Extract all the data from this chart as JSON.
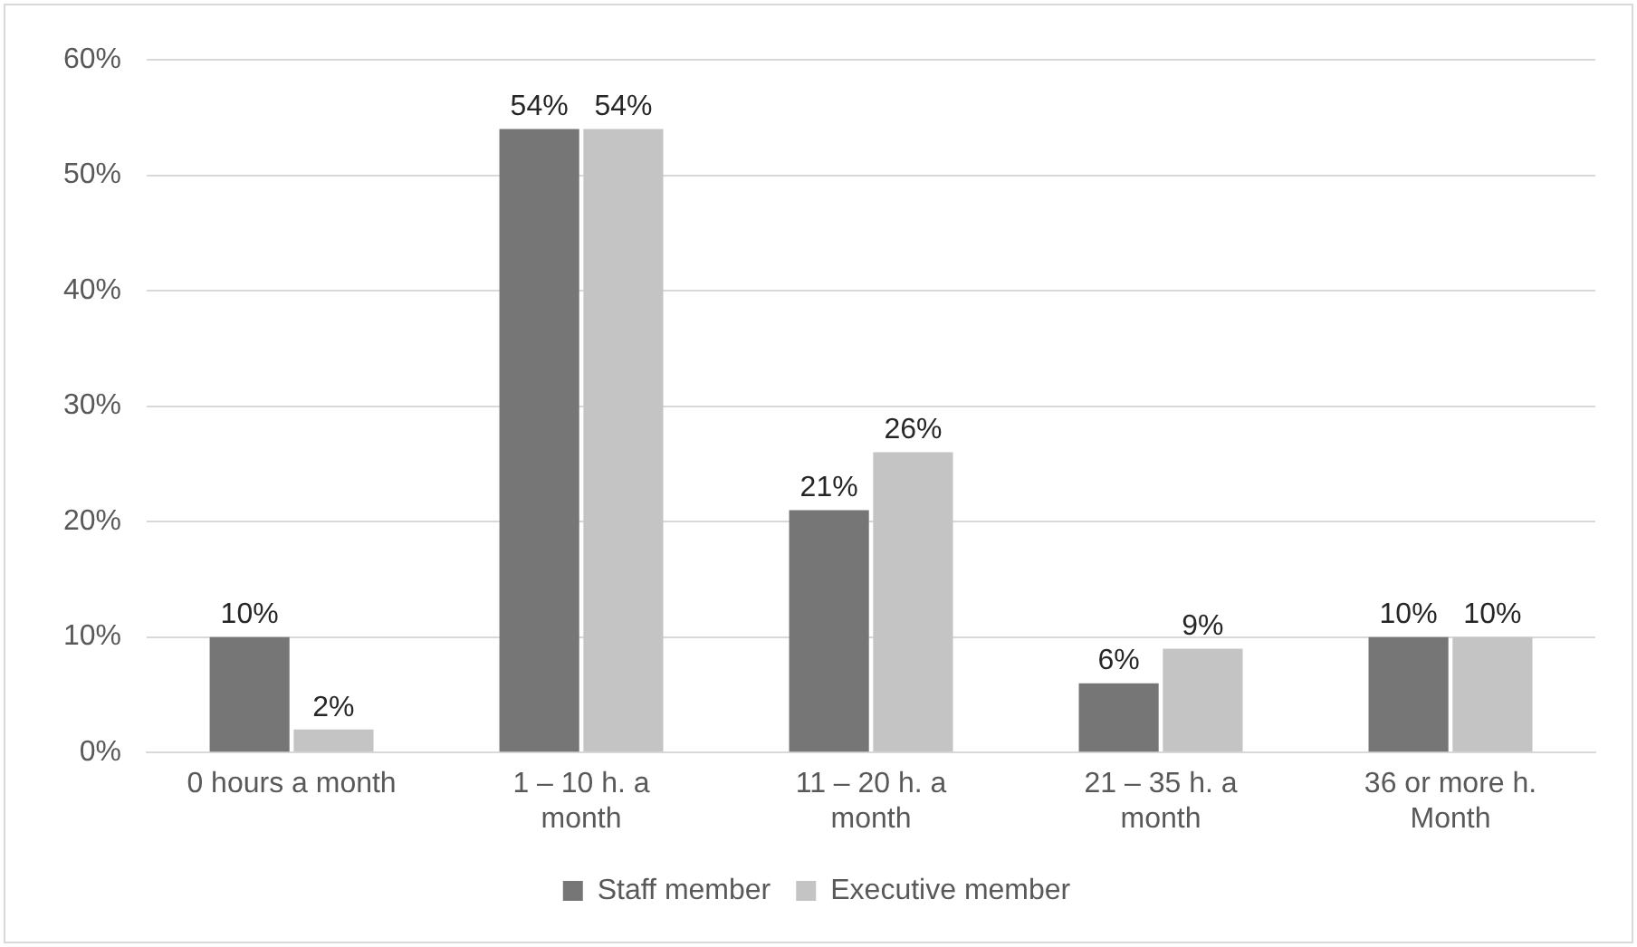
{
  "chart_data": {
    "type": "bar",
    "categories": [
      "0 hours a month",
      "1 – 10 h. a\nmonth",
      "11 – 20 h. a\nmonth",
      "21 – 35 h. a\nmonth",
      "36 or more h.\nMonth"
    ],
    "series": [
      {
        "name": "Staff member",
        "color": "#767676",
        "values": [
          10,
          54,
          21,
          6,
          10
        ],
        "value_labels": [
          "10%",
          "54%",
          "21%",
          "6%",
          "10%"
        ]
      },
      {
        "name": "Executive member",
        "color": "#c4c4c4",
        "values": [
          2,
          54,
          26,
          9,
          10
        ],
        "value_labels": [
          "2%",
          "54%",
          "26%",
          "9%",
          "10%"
        ]
      }
    ],
    "ylim": [
      0,
      60
    ],
    "yticks": [
      {
        "value": 0,
        "label": "0%"
      },
      {
        "value": 10,
        "label": "10%"
      },
      {
        "value": 20,
        "label": "20%"
      },
      {
        "value": 30,
        "label": "30%"
      },
      {
        "value": 40,
        "label": "40%"
      },
      {
        "value": 50,
        "label": "50%"
      },
      {
        "value": 60,
        "label": "60%"
      }
    ],
    "grid": "y",
    "legend": "bottom"
  }
}
